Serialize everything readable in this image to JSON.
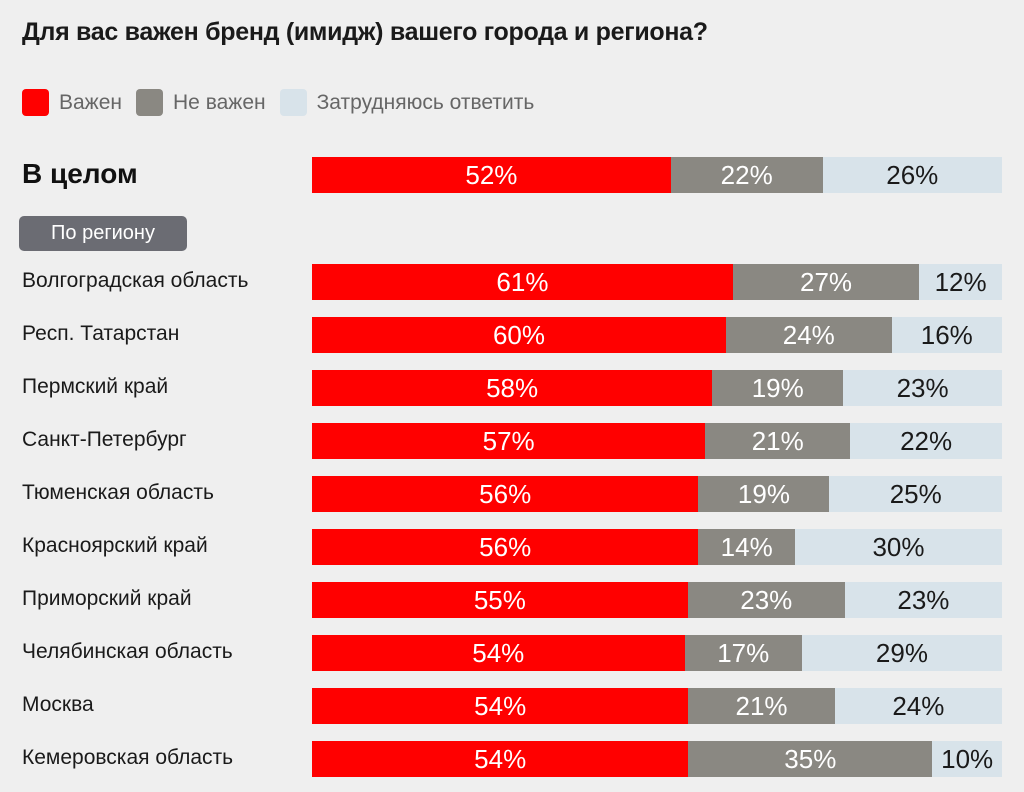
{
  "title": "Для вас важен бренд (имидж) вашего города и региона?",
  "legend": [
    {
      "label": "Важен",
      "color": "#ff0000"
    },
    {
      "label": "Не важен",
      "color": "#8a8882"
    },
    {
      "label": "Затрудняюсь ответить",
      "color": "#d8e3ea"
    }
  ],
  "overall_label": "В целом",
  "group_label": "По региону",
  "chart_data": {
    "type": "bar",
    "stacked": true,
    "orientation": "horizontal",
    "percent_stacked": true,
    "title": "Для вас важен бренд (имидж) вашего города и региона?",
    "series_names": [
      "Важен",
      "Не важен",
      "Затрудняюсь ответить"
    ],
    "colors": [
      "#ff0000",
      "#8a8882",
      "#d8e3ea"
    ],
    "overall": {
      "label": "В целом",
      "values": [
        52,
        22,
        26
      ]
    },
    "group": "По региону",
    "categories": [
      "Волгоградская область",
      "Респ. Татарстан",
      "Пермский край",
      "Санкт-Петербург",
      "Тюменская область",
      "Красноярский край",
      "Приморский край",
      "Челябинская область",
      "Москва",
      "Кемеровская область"
    ],
    "series": [
      {
        "name": "Важен",
        "values": [
          61,
          60,
          58,
          57,
          56,
          56,
          55,
          54,
          54,
          54
        ]
      },
      {
        "name": "Не важен",
        "values": [
          27,
          24,
          19,
          21,
          19,
          14,
          23,
          17,
          21,
          35
        ]
      },
      {
        "name": "Затрудняюсь ответить",
        "values": [
          12,
          16,
          23,
          22,
          25,
          30,
          23,
          29,
          24,
          10
        ]
      }
    ],
    "value_suffix": "%"
  }
}
